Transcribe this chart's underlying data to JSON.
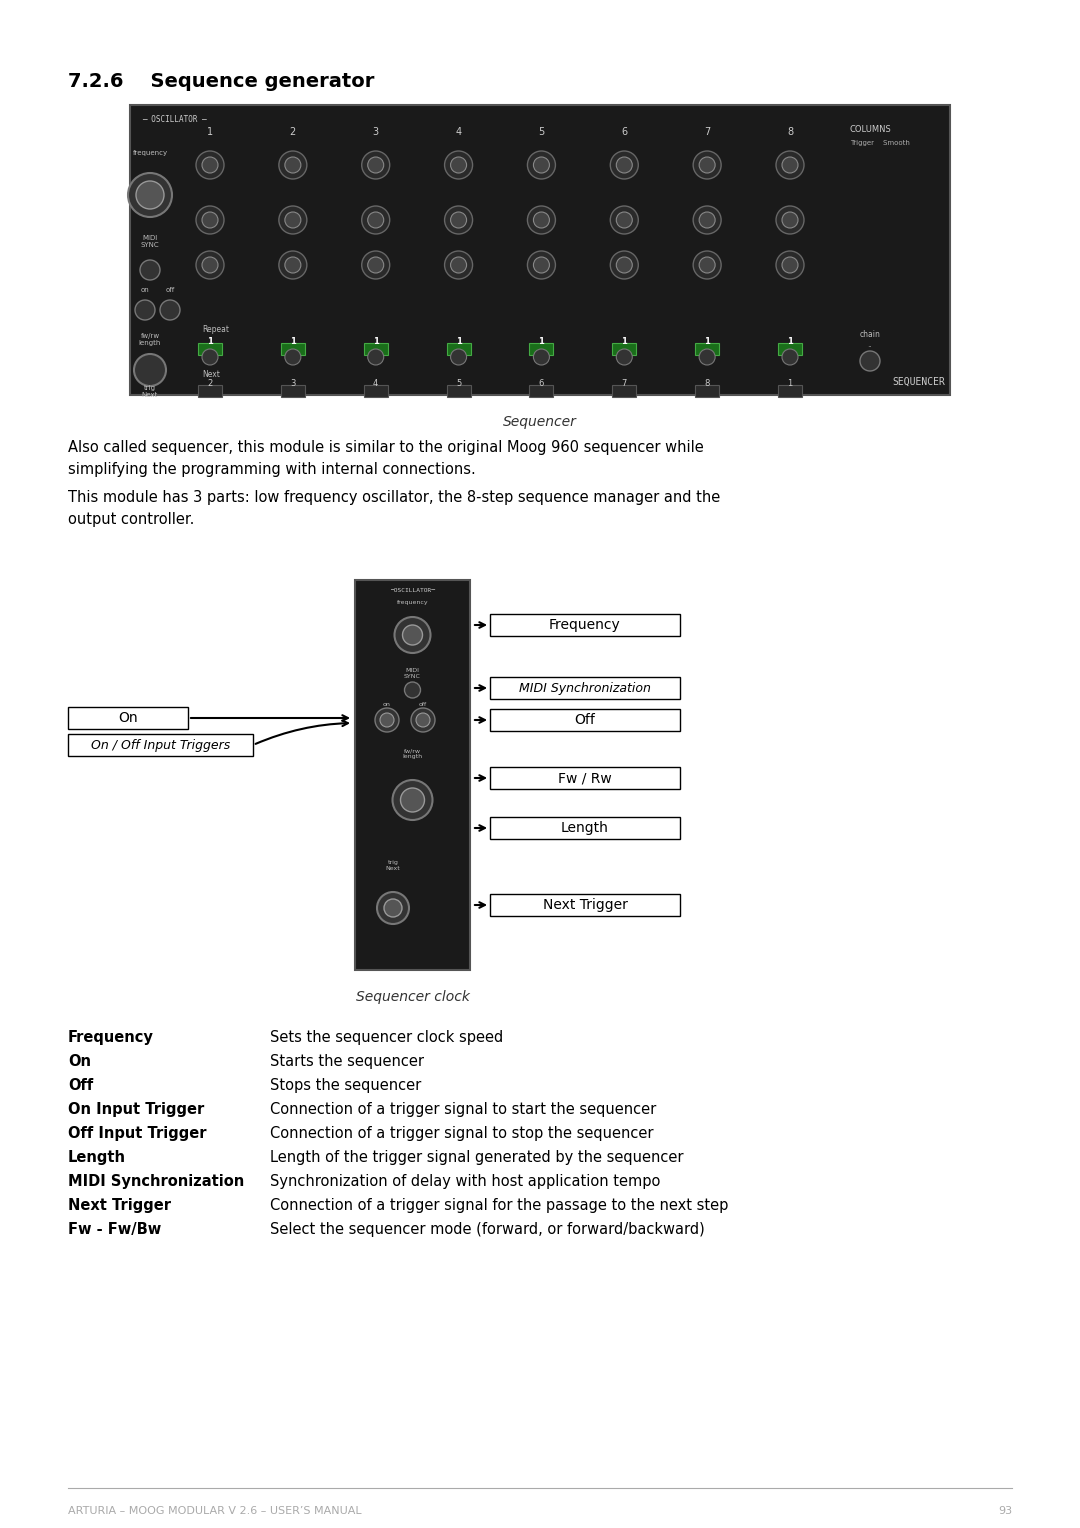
{
  "title": "7.2.6    Sequence generator",
  "title_fontsize": 14,
  "title_fontweight": "bold",
  "bg_color": "#ffffff",
  "text_color": "#000000",
  "section_heading_color": "#000000",
  "footer_text": "ARTURIA – MOOG MODULAR V 2.6 – USER’S MANUAL",
  "footer_page": "93",
  "sequencer_caption": "Sequencer",
  "diagram_caption": "Sequencer clock",
  "body_text_1": "Also called sequencer, this module is similar to the original Moog 960 sequencer while\nsimplifying the programming with internal connections.",
  "body_text_2": "This module has 3 parts: low frequency oscillator, the 8-step sequence manager and the\noutput controller.",
  "diagram_labels_right": [
    "Frequency",
    "MIDI Synchronization",
    "Off",
    "Fw / Rw",
    "Length",
    "Next Trigger"
  ],
  "diagram_labels_left": [
    "On",
    "On / Off Input Triggers"
  ],
  "table_rows": [
    [
      "Frequency",
      "Sets the sequencer clock speed"
    ],
    [
      "On",
      "Starts the sequencer"
    ],
    [
      "Off",
      "Stops the sequencer"
    ],
    [
      "On Input Trigger",
      "Connection of a trigger signal to start the sequencer"
    ],
    [
      "Off Input Trigger",
      "Connection of a trigger signal to stop the sequencer"
    ],
    [
      "Length",
      "Length of the trigger signal generated by the sequencer"
    ],
    [
      "MIDI Synchronization",
      "Synchronization of delay with host application tempo"
    ],
    [
      "Next Trigger",
      "Connection of a trigger signal for the passage to the next step"
    ],
    [
      "Fw - Fw/Bw",
      "Select the sequencer mode (forward, or forward/backward)"
    ]
  ],
  "label_box_color": "#ffffff",
  "label_box_edge": "#000000",
  "label_italic_indices": [
    2
  ],
  "arrow_color": "#000000"
}
